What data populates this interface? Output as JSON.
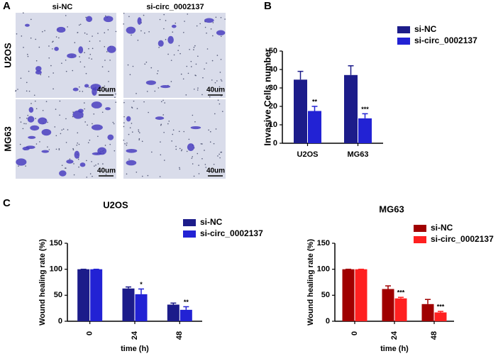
{
  "panel_labels": [
    "A",
    "B",
    "C"
  ],
  "images": {
    "columns": [
      "si-NC",
      "si-circ_0002137"
    ],
    "rows": [
      "U2OS",
      "MG63"
    ],
    "scale_bar": "40um"
  },
  "chart_data": [
    {
      "type": "bar",
      "ylabel": "Invasive Cells number",
      "categories": [
        "U2OS",
        "MG63"
      ],
      "series": [
        {
          "name": "si-NC",
          "color": "#1c1c8a",
          "values": [
            34.5,
            37
          ],
          "errors": [
            4.5,
            5
          ],
          "significance": [
            null,
            null
          ]
        },
        {
          "name": "si-circ_0002137",
          "color": "#2222d4",
          "values": [
            17.5,
            13.5
          ],
          "errors": [
            2.5,
            2.5
          ],
          "significance": [
            "**",
            "***"
          ]
        }
      ],
      "ylim": [
        0,
        50
      ],
      "yticks": [
        0,
        10,
        20,
        30,
        40,
        50
      ],
      "legend": "upper right"
    },
    {
      "type": "bar",
      "title": "U2OS",
      "ylabel": "Wound healing rate (%)",
      "xlabel": "time (h)",
      "categories": [
        "0",
        "24",
        "48"
      ],
      "series": [
        {
          "name": "si-NC",
          "color": "#1c1c8a",
          "values": [
            100,
            63,
            32
          ],
          "errors": [
            0,
            3,
            3
          ],
          "significance": [
            null,
            null,
            null
          ]
        },
        {
          "name": "si-circ_0002137",
          "color": "#2222d4",
          "values": [
            100,
            52,
            22
          ],
          "errors": [
            0,
            10,
            6
          ],
          "significance": [
            null,
            "*",
            "**"
          ]
        }
      ],
      "ylim": [
        0,
        150
      ],
      "yticks": [
        0,
        50,
        100,
        150
      ],
      "legend": "upper right"
    },
    {
      "type": "bar",
      "title": "MG63",
      "ylabel": "Wound healing rate (%)",
      "xlabel": "time (h)",
      "categories": [
        "0",
        "24",
        "48"
      ],
      "series": [
        {
          "name": "si-NC",
          "color": "#a00000",
          "values": [
            100,
            62,
            33
          ],
          "errors": [
            0,
            6,
            9
          ],
          "significance": [
            null,
            null,
            null
          ]
        },
        {
          "name": "si-circ_0002137",
          "color": "#ff2020",
          "values": [
            100,
            44,
            17
          ],
          "errors": [
            0,
            2,
            2
          ],
          "significance": [
            null,
            "***",
            "***"
          ]
        }
      ],
      "ylim": [
        0,
        150
      ],
      "yticks": [
        0,
        50,
        100,
        150
      ],
      "legend": "upper right"
    }
  ]
}
